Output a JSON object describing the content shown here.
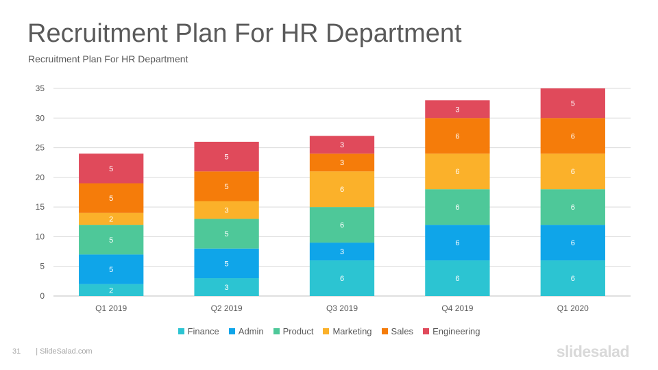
{
  "slide": {
    "title": "Recruitment Plan For HR Department",
    "subtitle": "Recruitment Plan For HR Department",
    "page_number": "31",
    "footer_text": "| SlideSalad.com",
    "brand": "slidesalad"
  },
  "chart_data": {
    "type": "bar",
    "stacked": true,
    "categories": [
      "Q1 2019",
      "Q2 2019",
      "Q3 2019",
      "Q4 2019",
      "Q1 2020"
    ],
    "series": [
      {
        "name": "Finance",
        "color": "#2cc4d2",
        "values": [
          2,
          3,
          6,
          6,
          6
        ]
      },
      {
        "name": "Admin",
        "color": "#0fa5e9",
        "values": [
          5,
          5,
          3,
          6,
          6
        ]
      },
      {
        "name": "Product",
        "color": "#4ec899",
        "values": [
          5,
          5,
          6,
          6,
          6
        ]
      },
      {
        "name": "Marketing",
        "color": "#fbb12a",
        "values": [
          2,
          3,
          6,
          6,
          6
        ]
      },
      {
        "name": "Sales",
        "color": "#f57c0a",
        "values": [
          5,
          5,
          3,
          6,
          6
        ]
      },
      {
        "name": "Engineering",
        "color": "#e04a5b",
        "values": [
          5,
          5,
          3,
          3,
          5
        ]
      }
    ],
    "ylim": [
      0,
      35
    ],
    "yticks": [
      "0",
      "5",
      "10",
      "15",
      "20",
      "25",
      "30",
      "35"
    ],
    "grid": true,
    "legend": "bottom"
  }
}
